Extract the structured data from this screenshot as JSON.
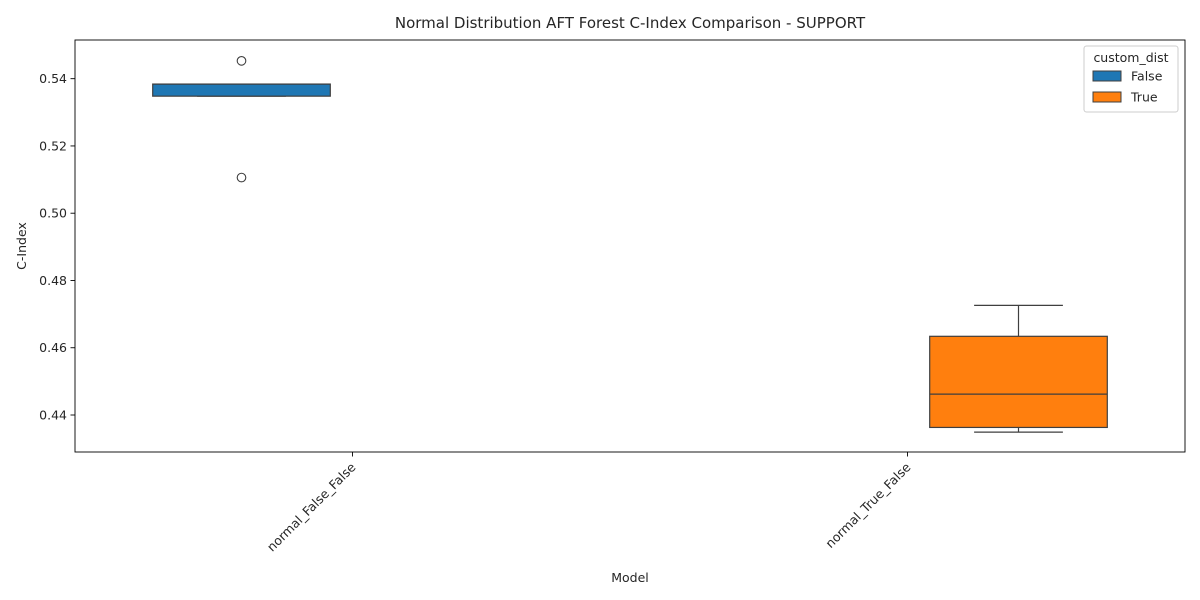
{
  "chart_data": {
    "type": "boxplot",
    "title": "Normal Distribution AFT Forest C-Index Comparison - SUPPORT",
    "xlabel": "Model",
    "ylabel": "C-Index",
    "categories": [
      "normal_False_False",
      "normal_True_False"
    ],
    "ylim": [
      0.429,
      0.5515
    ],
    "yticks": [
      0.44,
      0.46,
      0.48,
      0.5,
      0.52,
      0.54
    ],
    "ytick_labels": [
      "0.44",
      "0.46",
      "0.48",
      "0.50",
      "0.52",
      "0.54"
    ],
    "xtick_rotation_deg": 45,
    "grid": false,
    "legend": {
      "title": "custom_dist",
      "placement": "top-right",
      "entries": [
        "False",
        "True"
      ]
    },
    "series": [
      {
        "name": "False",
        "color": "#1f77b4",
        "boxes": [
          {
            "category": "normal_False_False",
            "whisker_low": 0.5348,
            "q1": 0.5348,
            "median": 0.5384,
            "q3": 0.5384,
            "whisker_high": 0.5384,
            "outliers": [
              0.5453,
              0.5106
            ]
          }
        ]
      },
      {
        "name": "True",
        "color": "#ff7f0e",
        "boxes": [
          {
            "category": "normal_True_False",
            "whisker_low": 0.4349,
            "q1": 0.4363,
            "median": 0.4462,
            "q3": 0.4634,
            "whisker_high": 0.4726,
            "outliers": []
          }
        ]
      }
    ]
  }
}
